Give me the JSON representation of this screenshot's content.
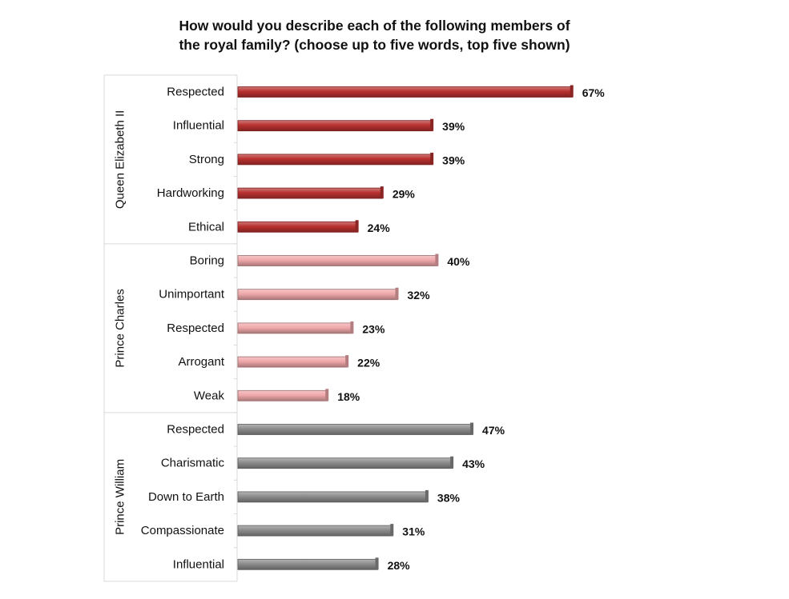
{
  "chart_data": {
    "type": "bar",
    "orientation": "horizontal",
    "title_lines": [
      "How would you describe each of the following members of",
      "the royal family? (choose up to five words, top five shown)"
    ],
    "xlim": [
      0,
      100
    ],
    "grid": false,
    "legend": "none",
    "groups": [
      {
        "name": "Queen Elizabeth II",
        "color": "#b8312f",
        "categories": [
          "Respected",
          "Influential",
          "Strong",
          "Hardworking",
          "Ethical"
        ],
        "values": [
          67,
          39,
          39,
          29,
          24
        ],
        "labels": [
          "67%",
          "39%",
          "39%",
          "29%",
          "24%"
        ]
      },
      {
        "name": "Prince Charles",
        "color": "#f0a8aa",
        "categories": [
          "Boring",
          "Unimportant",
          "Respected",
          "Arrogant",
          "Weak"
        ],
        "values": [
          40,
          32,
          23,
          22,
          18
        ],
        "labels": [
          "40%",
          "32%",
          "23%",
          "22%",
          "18%"
        ]
      },
      {
        "name": "Prince William",
        "color": "#8c8c8c",
        "categories": [
          "Respected",
          "Charismatic",
          "Down to Earth",
          "Compassionate",
          "Influential"
        ],
        "values": [
          47,
          43,
          38,
          31,
          28
        ],
        "labels": [
          "47%",
          "43%",
          "38%",
          "31%",
          "28%"
        ]
      }
    ]
  }
}
